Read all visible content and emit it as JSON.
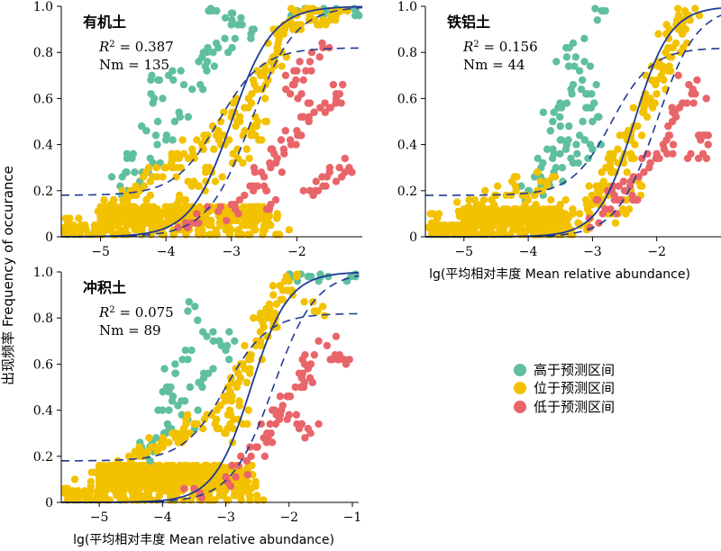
{
  "figure": {
    "ylabel": "出现频率 Frequency of occurance",
    "xlabel": "lg(平均相对丰度 Mean relative abundance)"
  },
  "legend": {
    "items": [
      {
        "label": "高于预测区间",
        "color": "#5fbf9f"
      },
      {
        "label": "位于预测区间",
        "color": "#f2c200"
      },
      {
        "label": "低于预测区间",
        "color": "#e8656a"
      }
    ]
  },
  "chart_data": [
    {
      "type": "scatter",
      "title": "有机土",
      "r2_label": "R",
      "r2_value": " = 0.387",
      "nm_text": "Nm = 135",
      "xlim": [
        -5.6,
        -1.0
      ],
      "ylim": [
        0,
        1.0
      ],
      "xticks": [
        -5,
        -4,
        -3,
        -2
      ],
      "yticks": [
        0,
        0.2,
        0.4,
        0.6,
        0.8,
        1.0
      ],
      "fit": {
        "ymax": 1.0,
        "x50": -3.0,
        "slope": 3.2
      },
      "ci_upper": {
        "ymax": 0.82,
        "x50": -3.2,
        "slope": 3.0,
        "base": 0.18
      },
      "ci_lower": {
        "ymax": 1.0,
        "x50": -2.7,
        "slope": 3.0,
        "base": 0.0
      },
      "clusters": [
        {
          "x": [
            -5.5,
            -2.1
          ],
          "y": [
            0.01,
            0.06
          ],
          "dy": 0.02
        },
        {
          "x": [
            -5.0,
            -2.2
          ],
          "y": [
            0.06,
            0.13
          ],
          "dy": 0.01
        }
      ],
      "series": [
        {
          "name": "高于预测区间",
          "color": "#5fbf9f",
          "points": [
            [
              -3.3,
              0.98
            ],
            [
              -3.0,
              0.97
            ],
            [
              -2.9,
              0.92
            ],
            [
              -2.7,
              0.88
            ],
            [
              -3.2,
              0.82
            ],
            [
              -3.5,
              0.76
            ],
            [
              -3.9,
              0.72
            ],
            [
              -4.1,
              0.68
            ],
            [
              -3.6,
              0.64
            ],
            [
              -4.2,
              0.58
            ],
            [
              -3.8,
              0.54
            ],
            [
              -4.3,
              0.46
            ],
            [
              -4.0,
              0.42
            ],
            [
              -4.5,
              0.36
            ],
            [
              -4.2,
              0.32
            ],
            [
              -4.6,
              0.28
            ],
            [
              -4.4,
              0.24
            ],
            [
              -4.7,
              0.22
            ],
            [
              -3.4,
              0.74
            ],
            [
              -3.1,
              0.86
            ],
            [
              -2.0,
              0.98
            ],
            [
              -1.7,
              0.98
            ],
            [
              -1.5,
              0.98
            ],
            [
              -1.1,
              0.98
            ]
          ]
        },
        {
          "name": "位于预测区间",
          "color": "#f2c200",
          "points": [
            [
              -5.5,
              0.06
            ],
            [
              -5.0,
              0.11
            ],
            [
              -4.8,
              0.14
            ],
            [
              -4.6,
              0.18
            ],
            [
              -4.4,
              0.2
            ],
            [
              -4.2,
              0.26
            ],
            [
              -4.0,
              0.3
            ],
            [
              -3.8,
              0.34
            ],
            [
              -3.6,
              0.38
            ],
            [
              -3.4,
              0.42
            ],
            [
              -3.2,
              0.46
            ],
            [
              -3.0,
              0.52
            ],
            [
              -2.8,
              0.56
            ],
            [
              -2.6,
              0.64
            ],
            [
              -2.5,
              0.7
            ],
            [
              -2.4,
              0.76
            ],
            [
              -2.3,
              0.82
            ],
            [
              -2.2,
              0.88
            ],
            [
              -2.1,
              0.92
            ],
            [
              -2.0,
              0.96
            ],
            [
              -1.8,
              0.96
            ],
            [
              -1.6,
              0.94
            ],
            [
              -1.4,
              0.96
            ],
            [
              -3.3,
              0.28
            ],
            [
              -3.1,
              0.4
            ],
            [
              -2.9,
              0.34
            ],
            [
              -2.7,
              0.44
            ],
            [
              -2.6,
              0.5
            ],
            [
              -3.7,
              0.16
            ],
            [
              -3.5,
              0.22
            ]
          ]
        },
        {
          "name": "低于预测区间",
          "color": "#e8656a",
          "points": [
            [
              -3.7,
              0.06
            ],
            [
              -3.5,
              0.06
            ],
            [
              -3.2,
              0.11
            ],
            [
              -3.0,
              0.14
            ],
            [
              -2.8,
              0.18
            ],
            [
              -2.6,
              0.22
            ],
            [
              -2.5,
              0.26
            ],
            [
              -2.4,
              0.3
            ],
            [
              -2.3,
              0.34
            ],
            [
              -2.2,
              0.38
            ],
            [
              -2.1,
              0.42
            ],
            [
              -2.0,
              0.46
            ],
            [
              -1.9,
              0.52
            ],
            [
              -1.8,
              0.58
            ],
            [
              -2.1,
              0.62
            ],
            [
              -1.9,
              0.68
            ],
            [
              -2.0,
              0.72
            ],
            [
              -1.8,
              0.76
            ],
            [
              -1.6,
              0.82
            ],
            [
              -1.5,
              0.56
            ],
            [
              -1.4,
              0.6
            ],
            [
              -1.3,
              0.66
            ],
            [
              -1.5,
              0.28
            ],
            [
              -1.4,
              0.24
            ],
            [
              -1.2,
              0.3
            ],
            [
              -1.6,
              0.22
            ],
            [
              -1.8,
              0.2
            ],
            [
              -2.4,
              0.14
            ]
          ]
        }
      ]
    },
    {
      "type": "scatter",
      "title": "铁铝土",
      "r2_label": "R",
      "r2_value": " = 0.156",
      "nm_text": "Nm = 44",
      "xlim": [
        -5.6,
        -1.0
      ],
      "ylim": [
        0,
        1.0
      ],
      "xticks": [
        -5,
        -4,
        -3,
        -2
      ],
      "yticks": [
        0,
        0.2,
        0.4,
        0.6,
        0.8,
        1.0
      ],
      "fit": {
        "ymax": 1.0,
        "x50": -2.35,
        "slope": 3.6
      },
      "ci_upper": {
        "ymax": 0.82,
        "x50": -2.7,
        "slope": 3.2,
        "base": 0.18
      },
      "ci_lower": {
        "ymax": 1.0,
        "x50": -2.0,
        "slope": 3.2,
        "base": 0.0
      },
      "clusters": [
        {
          "x": [
            -5.5,
            -3.0
          ],
          "y": [
            0.01,
            0.06
          ],
          "dy": 0.02
        },
        {
          "x": [
            -5.0,
            -3.3
          ],
          "y": [
            0.06,
            0.12
          ],
          "dy": 0.01
        }
      ],
      "series": [
        {
          "name": "高于预测区间",
          "color": "#5fbf9f",
          "points": [
            [
              -2.8,
              0.98
            ],
            [
              -3.3,
              0.84
            ],
            [
              -3.4,
              0.78
            ],
            [
              -3.2,
              0.72
            ],
            [
              -3.3,
              0.66
            ],
            [
              -3.1,
              0.62
            ],
            [
              -3.4,
              0.58
            ],
            [
              -3.6,
              0.54
            ],
            [
              -3.5,
              0.48
            ],
            [
              -3.2,
              0.44
            ],
            [
              -3.4,
              0.4
            ],
            [
              -3.6,
              0.36
            ],
            [
              -3.3,
              0.32
            ],
            [
              -3.8,
              0.3
            ],
            [
              -3.6,
              0.28
            ],
            [
              -3.9,
              0.26
            ],
            [
              -3.8,
              0.22
            ],
            [
              -4.0,
              0.2
            ],
            [
              -3.1,
              0.56
            ],
            [
              -3.0,
              0.5
            ],
            [
              -3.5,
              0.42
            ],
            [
              -3.0,
              0.38
            ]
          ]
        },
        {
          "name": "位于预测区间",
          "color": "#f2c200",
          "points": [
            [
              -5.5,
              0.06
            ],
            [
              -5.0,
              0.11
            ],
            [
              -4.8,
              0.14
            ],
            [
              -4.5,
              0.18
            ],
            [
              -4.2,
              0.22
            ],
            [
              -3.9,
              0.18
            ],
            [
              -3.7,
              0.24
            ],
            [
              -3.5,
              0.14
            ],
            [
              -3.2,
              0.1
            ],
            [
              -3.0,
              0.14
            ],
            [
              -2.9,
              0.18
            ],
            [
              -2.8,
              0.22
            ],
            [
              -2.7,
              0.28
            ],
            [
              -2.6,
              0.32
            ],
            [
              -2.5,
              0.36
            ],
            [
              -2.4,
              0.42
            ],
            [
              -2.3,
              0.48
            ],
            [
              -2.2,
              0.54
            ],
            [
              -2.1,
              0.6
            ],
            [
              -2.0,
              0.68
            ],
            [
              -1.9,
              0.72
            ],
            [
              -1.8,
              0.78
            ],
            [
              -1.7,
              0.84
            ],
            [
              -1.6,
              0.92
            ],
            [
              -1.5,
              0.96
            ],
            [
              -1.8,
              0.9
            ],
            [
              -2.6,
              0.1
            ],
            [
              -2.4,
              0.2
            ]
          ]
        },
        {
          "name": "低于预测区间",
          "color": "#e8656a",
          "points": [
            [
              -2.9,
              0.06
            ],
            [
              -2.8,
              0.12
            ],
            [
              -2.6,
              0.16
            ],
            [
              -2.5,
              0.2
            ],
            [
              -2.4,
              0.24
            ],
            [
              -2.2,
              0.28
            ],
            [
              -2.1,
              0.32
            ],
            [
              -2.0,
              0.36
            ],
            [
              -1.9,
              0.4
            ],
            [
              -1.8,
              0.44
            ],
            [
              -1.7,
              0.52
            ],
            [
              -1.6,
              0.58
            ],
            [
              -1.5,
              0.66
            ],
            [
              -1.4,
              0.62
            ],
            [
              -1.3,
              0.44
            ],
            [
              -1.2,
              0.4
            ],
            [
              -1.35,
              0.34
            ],
            [
              -2.3,
              0.16
            ],
            [
              -2.7,
              0.2
            ]
          ]
        }
      ]
    },
    {
      "type": "scatter",
      "title": "冲积土",
      "r2_label": "R",
      "r2_value": " = 0.075",
      "nm_text": "Nm = 89",
      "xlim": [
        -5.6,
        -0.9
      ],
      "ylim": [
        0,
        1.0
      ],
      "xticks": [
        -5,
        -4,
        -3,
        -2,
        -1
      ],
      "yticks": [
        0,
        0.2,
        0.4,
        0.6,
        0.8,
        1.0
      ],
      "fit": {
        "ymax": 1.0,
        "x50": -2.6,
        "slope": 3.4
      },
      "ci_upper": {
        "ymax": 0.82,
        "x50": -3.0,
        "slope": 3.0,
        "base": 0.18
      },
      "ci_lower": {
        "ymax": 1.0,
        "x50": -2.25,
        "slope": 3.0,
        "base": 0.0
      },
      "clusters": [
        {
          "x": [
            -5.5,
            -2.3
          ],
          "y": [
            0.01,
            0.06
          ],
          "dy": 0.02
        },
        {
          "x": [
            -5.0,
            -2.5
          ],
          "y": [
            0.06,
            0.16
          ],
          "dy": 0.01
        }
      ],
      "series": [
        {
          "name": "高于预测区间",
          "color": "#5fbf9f",
          "points": [
            [
              -3.6,
              0.83
            ],
            [
              -3.3,
              0.72
            ],
            [
              -3.1,
              0.7
            ],
            [
              -3.6,
              0.62
            ],
            [
              -3.8,
              0.56
            ],
            [
              -3.4,
              0.52
            ],
            [
              -3.9,
              0.48
            ],
            [
              -3.7,
              0.44
            ],
            [
              -4.0,
              0.4
            ],
            [
              -3.6,
              0.36
            ],
            [
              -3.9,
              0.32
            ],
            [
              -4.1,
              0.28
            ],
            [
              -4.2,
              0.24
            ],
            [
              -4.3,
              0.22
            ],
            [
              -3.0,
              0.66
            ],
            [
              -3.2,
              0.58
            ],
            [
              -2.0,
              0.98
            ],
            [
              -1.7,
              0.98
            ],
            [
              -1.5,
              0.98
            ],
            [
              -0.95,
              0.98
            ]
          ]
        },
        {
          "name": "位于预测区间",
          "color": "#f2c200",
          "points": [
            [
              -5.5,
              0.06
            ],
            [
              -5.0,
              0.11
            ],
            [
              -4.8,
              0.14
            ],
            [
              -4.5,
              0.18
            ],
            [
              -4.3,
              0.2
            ],
            [
              -4.1,
              0.24
            ],
            [
              -3.9,
              0.26
            ],
            [
              -3.7,
              0.3
            ],
            [
              -3.5,
              0.34
            ],
            [
              -3.3,
              0.38
            ],
            [
              -3.1,
              0.42
            ],
            [
              -2.9,
              0.46
            ],
            [
              -2.8,
              0.52
            ],
            [
              -2.7,
              0.58
            ],
            [
              -2.6,
              0.64
            ],
            [
              -2.5,
              0.7
            ],
            [
              -2.4,
              0.76
            ],
            [
              -2.3,
              0.8
            ],
            [
              -2.2,
              0.86
            ],
            [
              -2.1,
              0.92
            ],
            [
              -2.0,
              0.96
            ],
            [
              -1.6,
              0.83
            ],
            [
              -3.0,
              0.3
            ],
            [
              -2.8,
              0.36
            ]
          ]
        },
        {
          "name": "低于预测区间",
          "color": "#e8656a",
          "points": [
            [
              -3.5,
              0.06
            ],
            [
              -3.0,
              0.11
            ],
            [
              -2.8,
              0.16
            ],
            [
              -2.6,
              0.2
            ],
            [
              -2.5,
              0.24
            ],
            [
              -2.4,
              0.28
            ],
            [
              -2.3,
              0.34
            ],
            [
              -2.2,
              0.38
            ],
            [
              -2.1,
              0.42
            ],
            [
              -2.0,
              0.46
            ],
            [
              -1.9,
              0.5
            ],
            [
              -1.8,
              0.54
            ],
            [
              -1.7,
              0.58
            ],
            [
              -1.6,
              0.64
            ],
            [
              -1.4,
              0.68
            ],
            [
              -1.2,
              0.64
            ],
            [
              -1.1,
              0.6
            ],
            [
              -2.0,
              0.38
            ],
            [
              -1.8,
              0.34
            ],
            [
              -1.7,
              0.32
            ]
          ]
        }
      ]
    }
  ]
}
